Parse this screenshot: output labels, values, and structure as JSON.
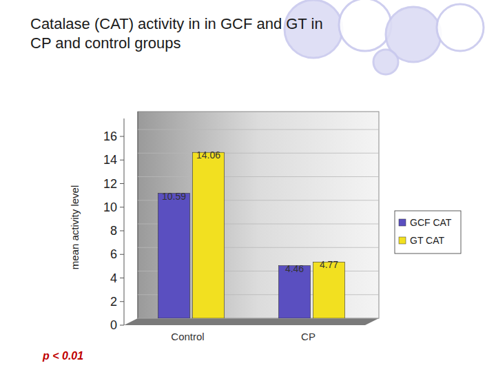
{
  "chart_data": {
    "type": "bar",
    "title": "Catalase (CAT) activity in in GCF and GT in CP and control groups",
    "y_label": "mean activity level",
    "categories": [
      "Control",
      "CP"
    ],
    "series": [
      {
        "name": "GCF CAT",
        "color": "#5a4fc0",
        "values": [
          10.59,
          4.46
        ]
      },
      {
        "name": "GT CAT",
        "color": "#f2e020",
        "values": [
          14.06,
          4.77
        ]
      }
    ],
    "ylim": [
      0,
      16
    ],
    "yticks": [
      0,
      2,
      4,
      6,
      8,
      10,
      12,
      14,
      16
    ],
    "grid": true,
    "legend": "right",
    "data_labels": true,
    "annotation": "p < 0.01"
  }
}
